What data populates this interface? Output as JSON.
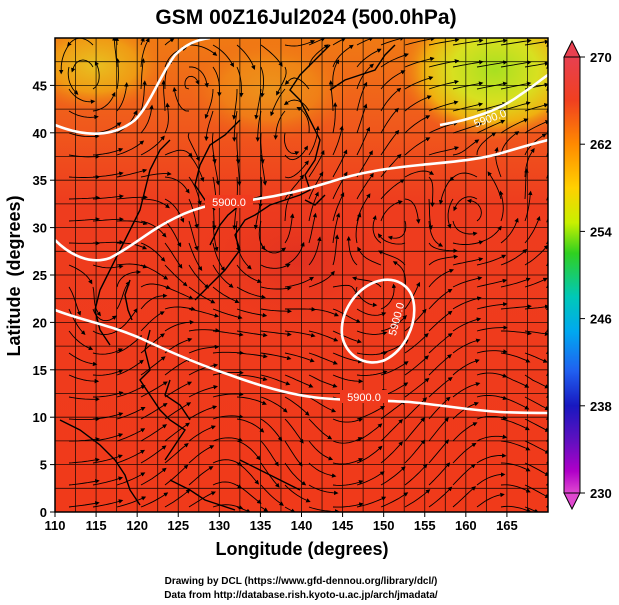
{
  "title": "GSM 00Z16Jul2024 (500.0hPa)",
  "xlabel": "Longitude (degrees)",
  "ylabel": "Latitude  (degrees)",
  "footer": {
    "line1": "Drawing by DCL (https://www.gfd-dennou.org/library/dcl/)",
    "line2": "Data from http://database.rish.kyoto-u.ac.jp/arch/jmadata/"
  },
  "x_ticks": [
    "110",
    "115",
    "120",
    "125",
    "130",
    "135",
    "140",
    "145",
    "150",
    "155",
    "160",
    "165"
  ],
  "y_ticks": [
    "0",
    "5",
    "10",
    "15",
    "20",
    "25",
    "30",
    "35",
    "40",
    "45"
  ],
  "colorbar": {
    "labels": [
      "270",
      "262",
      "254",
      "246",
      "238",
      "230"
    ],
    "colors": [
      "#e8404e",
      "#ff6a00",
      "#ffb000",
      "#ffe800",
      "#a8e800",
      "#30d020",
      "#00c8b8",
      "#00a8f0",
      "#2060f0",
      "#1818c8",
      "#6010c8",
      "#c000c8",
      "#e040c8"
    ]
  },
  "contour_labels": [
    "5900.0",
    "5900.0",
    "5900.0",
    "5900.0"
  ],
  "colors": {
    "field_main": "#f23a1e",
    "field_warm": "#f08a10",
    "field_yellow": "#e8c820",
    "field_green": "#a8e020",
    "streamline": "#000000",
    "contour": "#ffffff"
  }
}
